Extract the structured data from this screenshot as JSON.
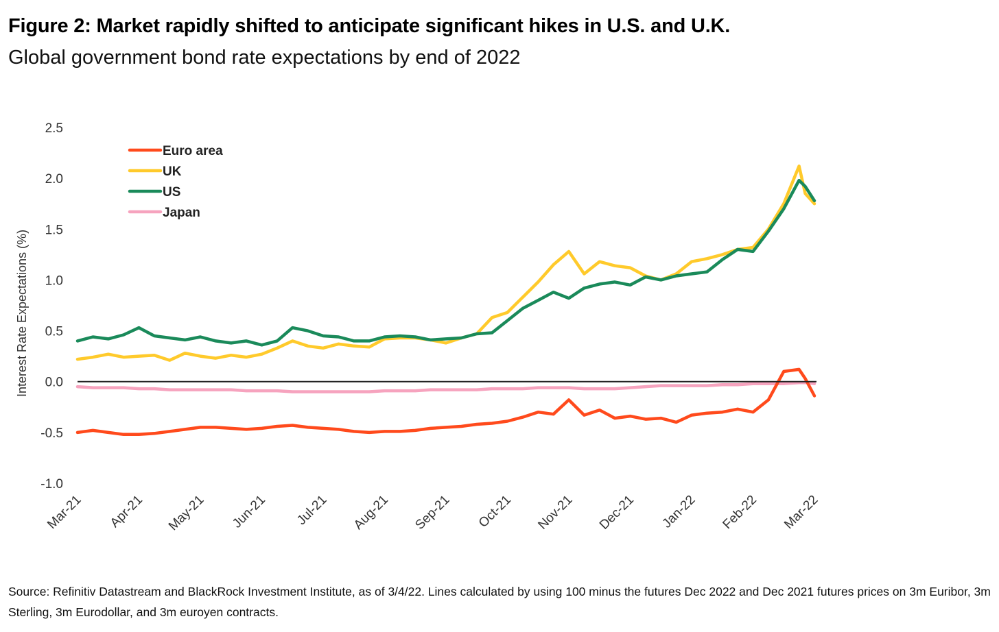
{
  "header": {
    "title": "Figure 2: Market rapidly shifted to anticipate significant hikes in U.S. and U.K.",
    "subtitle": "Global government bond rate expectations by end of 2022"
  },
  "footer": {
    "source": "Source: Refinitiv Datastream and BlackRock Investment Institute, as of 3/4/22. Lines calculated by using 100 minus the futures Dec 2022 and Dec 2021 futures prices on 3m Euribor, 3m Sterling, 3m Eurodollar, and 3m euroyen contracts."
  },
  "chart_data": {
    "type": "line",
    "title": "Figure 2: Market rapidly shifted to anticipate significant hikes in U.S. and U.K.",
    "subtitle": "Global government bond rate expectations by end of 2022",
    "xlabel": "",
    "ylabel": "Interest Rate Expectations (%)",
    "ylim": [
      -1.0,
      2.5
    ],
    "yticks": [
      "2.5",
      "2.0",
      "1.5",
      "1.0",
      "0.5",
      "0.0",
      "-0.5",
      "-1.0"
    ],
    "ytick_values": [
      2.5,
      2.0,
      1.5,
      1.0,
      0.5,
      0.0,
      -0.5,
      -1.0
    ],
    "xticks": [
      "Mar-21",
      "Apr-21",
      "May-21",
      "Jun-21",
      "Jul-21",
      "Aug-21",
      "Sep-21",
      "Oct-21",
      "Nov-21",
      "Dec-21",
      "Jan-22",
      "Feb-22",
      "Mar-22"
    ],
    "x_range_months": [
      0,
      12
    ],
    "grid": false,
    "zero_line": true,
    "legend_position": "top-left",
    "x": [
      0,
      0.25,
      0.5,
      0.75,
      1.0,
      1.25,
      1.5,
      1.75,
      2.0,
      2.25,
      2.5,
      2.75,
      3.0,
      3.25,
      3.5,
      3.75,
      4.0,
      4.25,
      4.5,
      4.75,
      5.0,
      5.25,
      5.5,
      5.75,
      6.0,
      6.25,
      6.5,
      6.75,
      7.0,
      7.25,
      7.5,
      7.75,
      8.0,
      8.25,
      8.5,
      8.75,
      9.0,
      9.25,
      9.5,
      9.75,
      10.0,
      10.25,
      10.5,
      10.75,
      11.0,
      11.25,
      11.5,
      11.75,
      11.85,
      12.0
    ],
    "series": [
      {
        "name": "Euro area",
        "color": "#FF4A1C",
        "values": [
          -0.5,
          -0.48,
          -0.5,
          -0.52,
          -0.52,
          -0.51,
          -0.49,
          -0.47,
          -0.45,
          -0.45,
          -0.46,
          -0.47,
          -0.46,
          -0.44,
          -0.43,
          -0.45,
          -0.46,
          -0.47,
          -0.49,
          -0.5,
          -0.49,
          -0.49,
          -0.48,
          -0.46,
          -0.45,
          -0.44,
          -0.42,
          -0.41,
          -0.39,
          -0.35,
          -0.3,
          -0.32,
          -0.18,
          -0.33,
          -0.28,
          -0.36,
          -0.34,
          -0.37,
          -0.36,
          -0.4,
          -0.33,
          -0.31,
          -0.3,
          -0.27,
          -0.3,
          -0.18,
          0.1,
          0.12,
          0.03,
          -0.14
        ]
      },
      {
        "name": "UK",
        "color": "#FFCA2B",
        "values": [
          0.22,
          0.24,
          0.27,
          0.24,
          0.25,
          0.26,
          0.21,
          0.28,
          0.25,
          0.23,
          0.26,
          0.24,
          0.27,
          0.33,
          0.4,
          0.35,
          0.33,
          0.37,
          0.35,
          0.34,
          0.42,
          0.43,
          0.43,
          0.41,
          0.38,
          0.43,
          0.47,
          0.63,
          0.68,
          0.83,
          0.98,
          1.15,
          1.28,
          1.06,
          1.18,
          1.14,
          1.12,
          1.04,
          1.0,
          1.06,
          1.18,
          1.21,
          1.25,
          1.3,
          1.32,
          1.5,
          1.75,
          2.12,
          1.85,
          1.75
        ]
      },
      {
        "name": "US",
        "color": "#1A8A5A",
        "values": [
          0.4,
          0.44,
          0.42,
          0.46,
          0.53,
          0.45,
          0.43,
          0.41,
          0.44,
          0.4,
          0.38,
          0.4,
          0.36,
          0.4,
          0.53,
          0.5,
          0.45,
          0.44,
          0.4,
          0.4,
          0.44,
          0.45,
          0.44,
          0.41,
          0.42,
          0.43,
          0.47,
          0.48,
          0.6,
          0.72,
          0.8,
          0.88,
          0.82,
          0.92,
          0.96,
          0.98,
          0.95,
          1.03,
          1.0,
          1.04,
          1.06,
          1.08,
          1.2,
          1.3,
          1.28,
          1.48,
          1.7,
          1.98,
          1.92,
          1.78
        ]
      },
      {
        "name": "Japan",
        "color": "#F6A3BE",
        "values": [
          -0.05,
          -0.06,
          -0.06,
          -0.06,
          -0.07,
          -0.07,
          -0.08,
          -0.08,
          -0.08,
          -0.08,
          -0.08,
          -0.09,
          -0.09,
          -0.09,
          -0.1,
          -0.1,
          -0.1,
          -0.1,
          -0.1,
          -0.1,
          -0.09,
          -0.09,
          -0.09,
          -0.08,
          -0.08,
          -0.08,
          -0.08,
          -0.07,
          -0.07,
          -0.07,
          -0.06,
          -0.06,
          -0.06,
          -0.07,
          -0.07,
          -0.07,
          -0.06,
          -0.05,
          -0.04,
          -0.04,
          -0.04,
          -0.04,
          -0.03,
          -0.03,
          -0.02,
          -0.02,
          -0.02,
          -0.01,
          -0.01,
          -0.02
        ]
      }
    ]
  }
}
